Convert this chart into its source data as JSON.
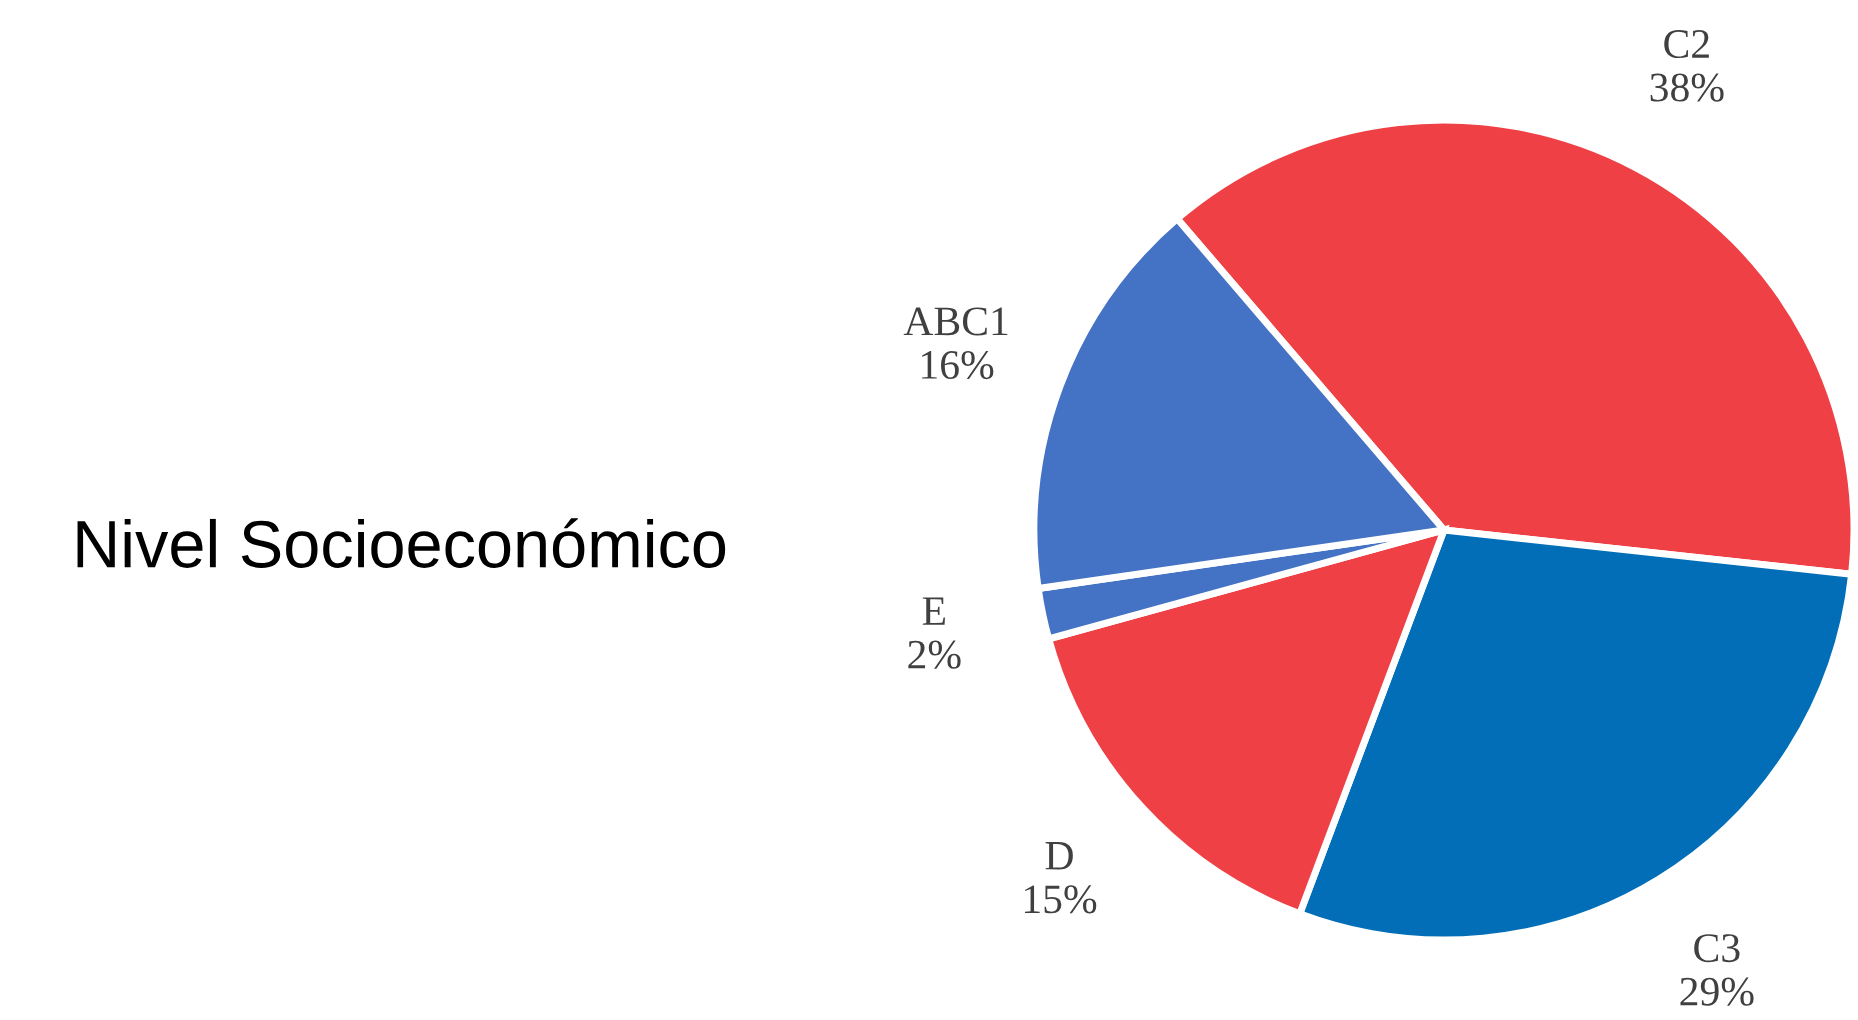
{
  "chart_data": {
    "type": "pie",
    "title": "Nivel Socioeconómico",
    "categories": [
      "C2",
      "C3",
      "D",
      "E",
      "ABC1"
    ],
    "values": [
      38,
      29,
      15,
      2,
      16
    ],
    "colors": [
      "#ef4045",
      "#036eb8",
      "#ef4045",
      "#4472c4",
      "#4472c4"
    ],
    "value_labels": [
      "38%",
      "29%",
      "15%",
      "2%",
      "16%"
    ],
    "legend": false
  }
}
